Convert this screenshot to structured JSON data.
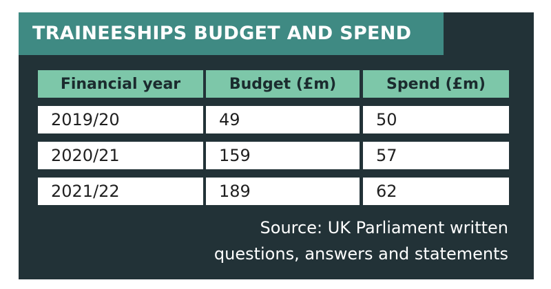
{
  "title": "TRAINEESHIPS BUDGET AND SPEND",
  "table": {
    "headers": [
      "Financial year",
      "Budget (£m)",
      "Spend (£m)"
    ],
    "rows": [
      [
        "2019/20",
        "49",
        "50"
      ],
      [
        "2020/21",
        "159",
        "57"
      ],
      [
        "2021/22",
        "189",
        "62"
      ]
    ]
  },
  "source": {
    "line1": "Source: UK Parliament written",
    "line2": "questions, answers and statements"
  },
  "colors": {
    "panel_background": "#223237",
    "title_bar": "#3f8a83",
    "header_cells": "#7dc7a9",
    "data_cells": "#ffffff",
    "text_light": "#ffffff"
  }
}
